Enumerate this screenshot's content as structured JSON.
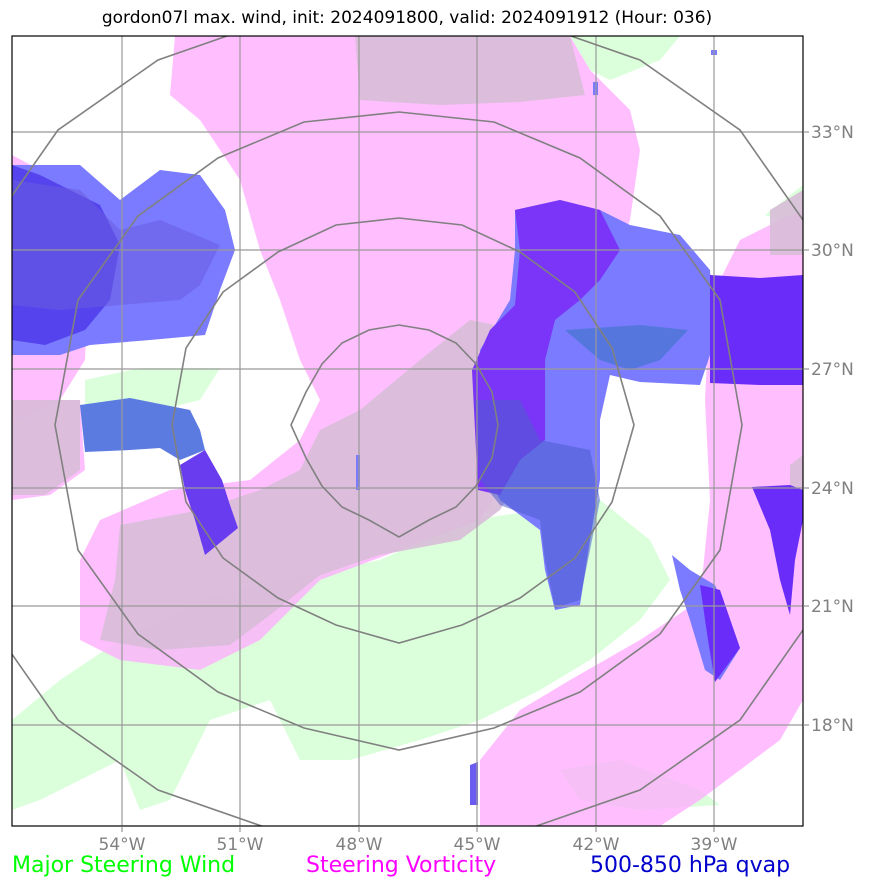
{
  "title": "gordon07l max. wind, init: 2024091800, valid: 2024091912 (Hour: 036)",
  "map": {
    "lon_labels": [
      "54°W",
      "51°W",
      "48°W",
      "45°W",
      "42°W",
      "39°W"
    ],
    "lat_labels": [
      "33°N",
      "30°N",
      "27°N",
      "24°N",
      "21°N",
      "18°N"
    ],
    "grid": true,
    "range_rings": 4
  },
  "layers": [
    {
      "name": "Major Steering Wind",
      "color": "#00ff00",
      "fill": "#ccffcc"
    },
    {
      "name": "Steering Vorticity",
      "color": "#ff00ff",
      "fill": "#ffaaff"
    },
    {
      "name": "500-850 hPa qvap",
      "color": "#0000cc",
      "fill": "#4a4aff"
    }
  ],
  "legend": {
    "wind_label": "Major Steering Wind",
    "vort_label": "Steering Vorticity",
    "qvap_label": "500-850 hPa qvap",
    "wind_color": "#00ff00",
    "vort_color": "#ff00ff",
    "qvap_color": "#0000cc"
  }
}
